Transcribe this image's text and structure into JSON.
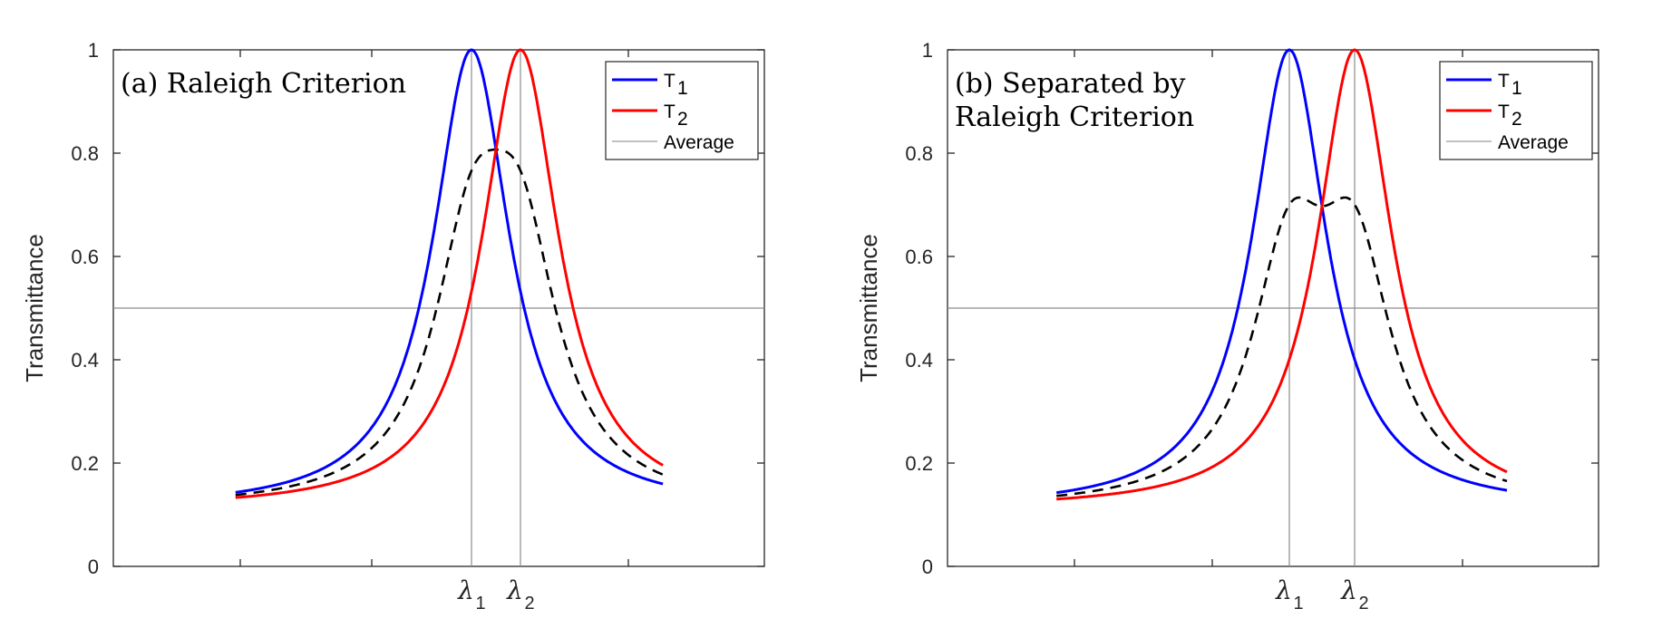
{
  "chart_data": [
    {
      "type": "line",
      "title": "(a) Raleigh Criterion",
      "title_lines": [
        "(a) Raleigh Criterion"
      ],
      "ylabel": "Transmittance",
      "xlabel": "",
      "ylim": [
        0,
        1
      ],
      "yticks": [
        "0",
        "0.2",
        "0.4",
        "0.6",
        "0.8",
        "1"
      ],
      "xticks": [
        {
          "label": "λ",
          "sub": "1"
        },
        {
          "label": "λ",
          "sub": "2"
        }
      ],
      "xlim": [
        -6,
        6
      ],
      "x_minor_ticks": [
        -3,
        0,
        3
      ],
      "peaks": [
        0,
        1.1
      ],
      "half_width": 1.1,
      "baseline": 0.11,
      "curve_xrange": [
        -5.4,
        5.3
      ],
      "reference_line": 0.5,
      "legend_position": "top-right",
      "series": [
        {
          "name": "T",
          "sub": "1",
          "color": "#0000ff",
          "style": "solid",
          "peak": 0.0
        },
        {
          "name": "T",
          "sub": "2",
          "color": "#ff0000",
          "style": "solid",
          "peak": 1.1
        },
        {
          "name": "Average",
          "color": "#000000",
          "style": "dashed",
          "legend_line_color": "#9a9a9a"
        }
      ]
    },
    {
      "type": "line",
      "title": "(b) Separated by Raleigh Criterion",
      "title_lines": [
        "(b) Separated by",
        "Raleigh Criterion"
      ],
      "ylabel": "Transmittance",
      "xlabel": "",
      "ylim": [
        0,
        1
      ],
      "yticks": [
        "0",
        "0.2",
        "0.4",
        "0.6",
        "0.8",
        "1"
      ],
      "xticks": [
        {
          "label": "λ",
          "sub": "1"
        },
        {
          "label": "λ",
          "sub": "2"
        }
      ],
      "xlim": [
        -6,
        6
      ],
      "x_minor_ticks": [
        -3,
        0,
        3
      ],
      "peaks": [
        0,
        1.5
      ],
      "half_width": 1.1,
      "baseline": 0.11,
      "curve_xrange": [
        -5.4,
        6.2
      ],
      "reference_line": 0.5,
      "legend_position": "top-right",
      "series": [
        {
          "name": "T",
          "sub": "1",
          "color": "#0000ff",
          "style": "solid",
          "peak": 0.0
        },
        {
          "name": "T",
          "sub": "2",
          "color": "#ff0000",
          "style": "solid",
          "peak": 1.5
        },
        {
          "name": "Average",
          "color": "#000000",
          "style": "dashed",
          "legend_line_color": "#9a9a9a"
        }
      ]
    }
  ]
}
